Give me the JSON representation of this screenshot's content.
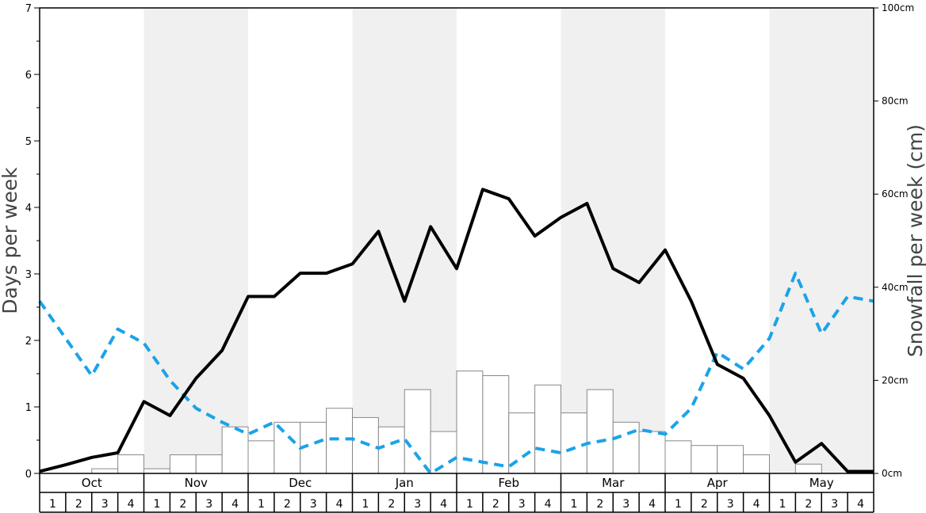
{
  "chart_data": {
    "type": "bar+line",
    "months": [
      "Oct",
      "Nov",
      "Dec",
      "Jan",
      "Feb",
      "Mar",
      "Apr",
      "May"
    ],
    "week_labels": [
      "1",
      "2",
      "3",
      "4"
    ],
    "left_axis": {
      "label": "Days per week",
      "ylim": [
        0,
        7
      ],
      "ticks": [
        "0",
        "1",
        "2",
        "3",
        "4",
        "5",
        "6",
        "7"
      ]
    },
    "right_axis": {
      "label": "Snowfall per week (cm)",
      "ylim": [
        0,
        100
      ],
      "ticks": [
        {
          "value": 0,
          "label": "0cm"
        },
        {
          "value": 20,
          "label": "20cm"
        },
        {
          "value": 40,
          "label": "40cm"
        },
        {
          "value": 60,
          "label": "60cm"
        },
        {
          "value": 80,
          "label": "80cm"
        },
        {
          "value": 100,
          "label": "100cm"
        }
      ]
    },
    "snowfall_bars_cm": [
      0,
      0,
      1,
      4,
      1,
      4,
      4,
      10,
      7,
      11,
      11,
      14,
      12,
      10,
      18,
      9,
      22,
      21,
      13,
      19,
      13,
      18,
      11,
      9,
      7,
      6,
      6,
      4,
      0,
      2,
      0,
      0
    ],
    "solid_line_days": [
      0.03,
      0.13,
      0.24,
      0.31,
      1.08,
      0.87,
      1.43,
      1.85,
      2.66,
      2.66,
      3.01,
      3.01,
      3.15,
      3.64,
      2.59,
      3.71,
      3.08,
      4.27,
      4.13,
      3.57,
      3.85,
      4.06,
      3.08,
      2.87,
      3.36,
      2.59,
      1.64,
      1.43,
      0.87,
      0.17,
      0.45,
      0.03,
      0.03
    ],
    "dashed_line_days": [
      2.59,
      2.03,
      1.47,
      2.17,
      1.96,
      1.4,
      0.98,
      0.77,
      0.59,
      0.77,
      0.38,
      0.52,
      0.52,
      0.38,
      0.52,
      0.0,
      0.24,
      0.17,
      0.1,
      0.38,
      0.31,
      0.45,
      0.52,
      0.66,
      0.59,
      0.98,
      1.82,
      1.57,
      2.03,
      3.01,
      2.1,
      2.66,
      2.59
    ],
    "colors": {
      "solid_line": "#000000",
      "dashed_line": "#1aa3e8",
      "shaded_band": "#f0f0f0",
      "bar_fill": "#ffffff",
      "bar_stroke": "#888888"
    },
    "shaded_months": [
      "Nov",
      "Jan",
      "Mar",
      "May"
    ]
  }
}
